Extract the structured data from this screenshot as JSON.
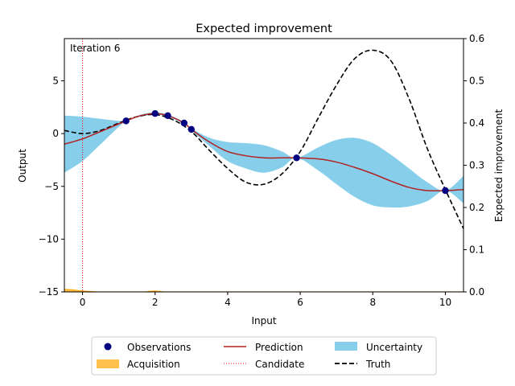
{
  "chart_data": {
    "type": "line",
    "title": "Expected improvement",
    "xlabel": "Input",
    "ylabel_left": "Output",
    "ylabel_right": "Expected improvement",
    "annotation": "Iteration 6",
    "xlim": [
      -0.5,
      10.5
    ],
    "ylim_left": [
      -15,
      9
    ],
    "ylim_right": [
      0,
      0.6
    ],
    "xticks": [
      "0",
      "2",
      "4",
      "6",
      "8",
      "10"
    ],
    "yticks_left": [
      "−15",
      "−10",
      "−5",
      "0",
      "5"
    ],
    "yticks_right": [
      "0.0",
      "0.1",
      "0.2",
      "0.3",
      "0.4",
      "0.5",
      "0.6"
    ],
    "candidate_x": 0.0,
    "observations": {
      "x": [
        1.2,
        2.0,
        2.35,
        2.8,
        3.0,
        5.9,
        10.0
      ],
      "y": [
        1.2,
        1.9,
        1.7,
        1.0,
        0.4,
        -2.3,
        -5.4
      ]
    },
    "prediction": {
      "x": [
        -0.5,
        0,
        0.5,
        1.2,
        1.6,
        2.0,
        2.35,
        2.8,
        3.0,
        3.5,
        4.0,
        4.5,
        5.0,
        5.5,
        5.9,
        6.5,
        7.0,
        7.5,
        8.0,
        8.5,
        9.0,
        9.5,
        10.0,
        10.5
      ],
      "y": [
        -1.0,
        -0.5,
        0.2,
        1.2,
        1.7,
        1.9,
        1.7,
        1.0,
        0.4,
        -0.8,
        -1.7,
        -2.1,
        -2.3,
        -2.3,
        -2.3,
        -2.4,
        -2.7,
        -3.2,
        -3.8,
        -4.5,
        -5.1,
        -5.4,
        -5.4,
        -5.3
      ]
    },
    "uncertainty": {
      "x": [
        -0.5,
        0,
        0.5,
        1.2,
        1.6,
        2.0,
        2.35,
        2.8,
        3.0,
        3.5,
        4.0,
        4.5,
        5.0,
        5.5,
        5.9,
        6.5,
        7.0,
        7.5,
        8.0,
        8.5,
        9.0,
        9.5,
        10.0,
        10.5
      ],
      "upper": [
        1.7,
        1.6,
        1.4,
        1.2,
        1.8,
        2.0,
        1.8,
        1.1,
        0.5,
        -0.4,
        -0.8,
        -0.9,
        -1.1,
        -1.7,
        -2.3,
        -1.3,
        -0.6,
        -0.4,
        -0.9,
        -2.0,
        -3.3,
        -4.6,
        -5.4,
        -4.0
      ],
      "lower": [
        -3.7,
        -2.6,
        -1.0,
        1.2,
        1.6,
        1.8,
        1.6,
        0.9,
        0.3,
        -1.2,
        -2.6,
        -3.3,
        -3.7,
        -3.2,
        -2.3,
        -3.5,
        -4.8,
        -6.0,
        -6.8,
        -7.0,
        -6.9,
        -6.4,
        -5.4,
        -6.6
      ]
    },
    "truth": {
      "x": [
        -0.5,
        0,
        0.5,
        1.0,
        1.5,
        2.0,
        2.5,
        3.0,
        3.5,
        4.0,
        4.5,
        5.0,
        5.5,
        6.0,
        6.5,
        7.0,
        7.5,
        8.0,
        8.5,
        9.0,
        9.5,
        10.0,
        10.5
      ],
      "y": [
        0.3,
        0.0,
        0.3,
        1.0,
        1.6,
        1.8,
        1.3,
        0.2,
        -1.6,
        -3.3,
        -4.6,
        -4.8,
        -3.8,
        -1.7,
        1.5,
        4.6,
        7.1,
        7.9,
        6.9,
        3.3,
        -1.4,
        -5.3,
        -9.0
      ]
    },
    "acquisition": {
      "x": [
        -0.5,
        -0.3,
        -0.1,
        0.1,
        0.3,
        0.5,
        1.0,
        1.7,
        1.85,
        2.0,
        2.15,
        2.3,
        3.0,
        10.5
      ],
      "ei": [
        0.006,
        0.005,
        0.003,
        0.0015,
        0.0005,
        0.0,
        0.0,
        0.0,
        0.0015,
        0.002,
        0.001,
        0.0,
        0.0,
        0.0
      ]
    },
    "legend": {
      "observations": "Observations",
      "acquisition": "Acquisition",
      "prediction": "Prediction",
      "candidate": "Candidate",
      "uncertainty": "Uncertainty",
      "truth": "Truth"
    },
    "colors": {
      "observations": "#000080",
      "acquisition": "#ffa500",
      "prediction": "#b22222",
      "candidate": "#ff0000",
      "uncertainty": "#87ceeb",
      "truth": "#000000"
    }
  }
}
